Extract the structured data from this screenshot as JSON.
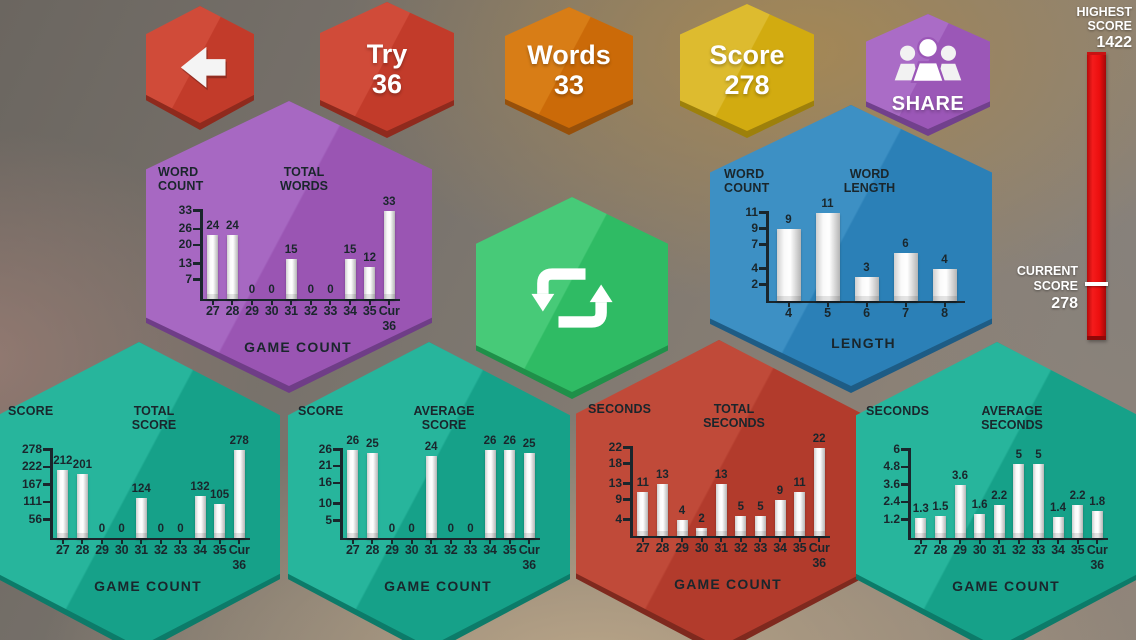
{
  "header": {
    "try": {
      "title": "Try",
      "value": "36"
    },
    "words": {
      "title": "Words",
      "value": "33"
    },
    "score": {
      "title": "Score",
      "value": "278"
    },
    "share_label": "SHARE"
  },
  "score_rail": {
    "highest_label": "HIGHEST\nSCORE",
    "highest_value": "1422",
    "current_label": "CURRENT\nSCORE",
    "current_value": "278",
    "highest": 1422,
    "current": 278
  },
  "icons": {
    "back": "back-arrow-icon",
    "share": "people-icon",
    "refresh": "loop-icon"
  },
  "colors": {
    "button_red": "#c23b2a",
    "button_orange": "#cb6a08",
    "button_yellow": "#d2ab10",
    "button_purple": "#9b57b7",
    "panel_purple": "#9a55b3",
    "panel_blue": "#2b80b7",
    "panel_green": "#2fbb64",
    "panel_teal": "#16a189",
    "panel_red": "#b23b2c",
    "chart_text": "#1a262c",
    "bar_fill": "#ffffff",
    "rail_red": "#ec0f0f",
    "rail_marker": "#ffffff"
  },
  "chart_data": [
    {
      "name": "total-words",
      "type": "bar",
      "ylab": "WORD\nCOUNT",
      "title": "TOTAL\nWORDS",
      "xlabel": "GAME COUNT",
      "yticks": [
        33,
        26,
        20,
        13,
        7
      ],
      "ylim": [
        0,
        33
      ],
      "categories": [
        "27",
        "28",
        "29",
        "30",
        "31",
        "32",
        "33",
        "34",
        "35",
        "Cur"
      ],
      "last_sub": "36",
      "values": [
        24,
        24,
        0,
        0,
        15,
        0,
        0,
        15,
        12,
        33
      ]
    },
    {
      "name": "word-length",
      "type": "bar",
      "ylab": "WORD\nCOUNT",
      "title": "WORD\nLENGTH",
      "xlabel": "LENGTH",
      "yticks": [
        11,
        9,
        7,
        4,
        2
      ],
      "ylim": [
        0,
        11
      ],
      "categories": [
        "4",
        "5",
        "6",
        "7",
        "8"
      ],
      "values": [
        9,
        11,
        3,
        6,
        4
      ]
    },
    {
      "name": "total-score",
      "type": "bar",
      "ylab": "SCORE",
      "title": "TOTAL\nSCORE",
      "xlabel": "GAME COUNT",
      "yticks": [
        278,
        222,
        167,
        111,
        56
      ],
      "ylim": [
        0,
        278
      ],
      "categories": [
        "27",
        "28",
        "29",
        "30",
        "31",
        "32",
        "33",
        "34",
        "35",
        "Cur"
      ],
      "last_sub": "36",
      "values": [
        212,
        201,
        0,
        0,
        124,
        0,
        0,
        132,
        105,
        278
      ]
    },
    {
      "name": "average-score",
      "type": "bar",
      "ylab": "SCORE",
      "title": "AVERAGE\nSCORE",
      "xlabel": "GAME COUNT",
      "yticks": [
        26,
        21,
        16,
        10,
        5
      ],
      "ylim": [
        0,
        26
      ],
      "categories": [
        "27",
        "28",
        "29",
        "30",
        "31",
        "32",
        "33",
        "34",
        "35",
        "Cur"
      ],
      "last_sub": "36",
      "values": [
        26,
        25,
        0,
        0,
        24,
        0,
        0,
        26,
        26,
        25
      ]
    },
    {
      "name": "total-seconds",
      "type": "bar",
      "ylab": "SECONDS",
      "title": "TOTAL\nSECONDS",
      "xlabel": "GAME COUNT",
      "yticks": [
        22,
        18,
        13,
        9,
        4
      ],
      "ylim": [
        0,
        22
      ],
      "categories": [
        "27",
        "28",
        "29",
        "30",
        "31",
        "32",
        "33",
        "34",
        "35",
        "Cur"
      ],
      "last_sub": "36",
      "values": [
        11,
        13,
        4,
        2,
        13,
        5,
        5,
        9,
        11,
        22
      ]
    },
    {
      "name": "average-seconds",
      "type": "bar",
      "ylab": "SECONDS",
      "title": "AVERAGE\nSECONDS",
      "xlabel": "GAME COUNT",
      "yticks": [
        6,
        4.8,
        3.6,
        2.4,
        1.2
      ],
      "ylim": [
        0,
        6
      ],
      "categories": [
        "27",
        "28",
        "29",
        "30",
        "31",
        "32",
        "33",
        "34",
        "35",
        "Cur"
      ],
      "last_sub": "36",
      "values": [
        1.3,
        1.5,
        3.6,
        1.6,
        2.2,
        5,
        5,
        1.4,
        2.2,
        1.8
      ]
    }
  ]
}
